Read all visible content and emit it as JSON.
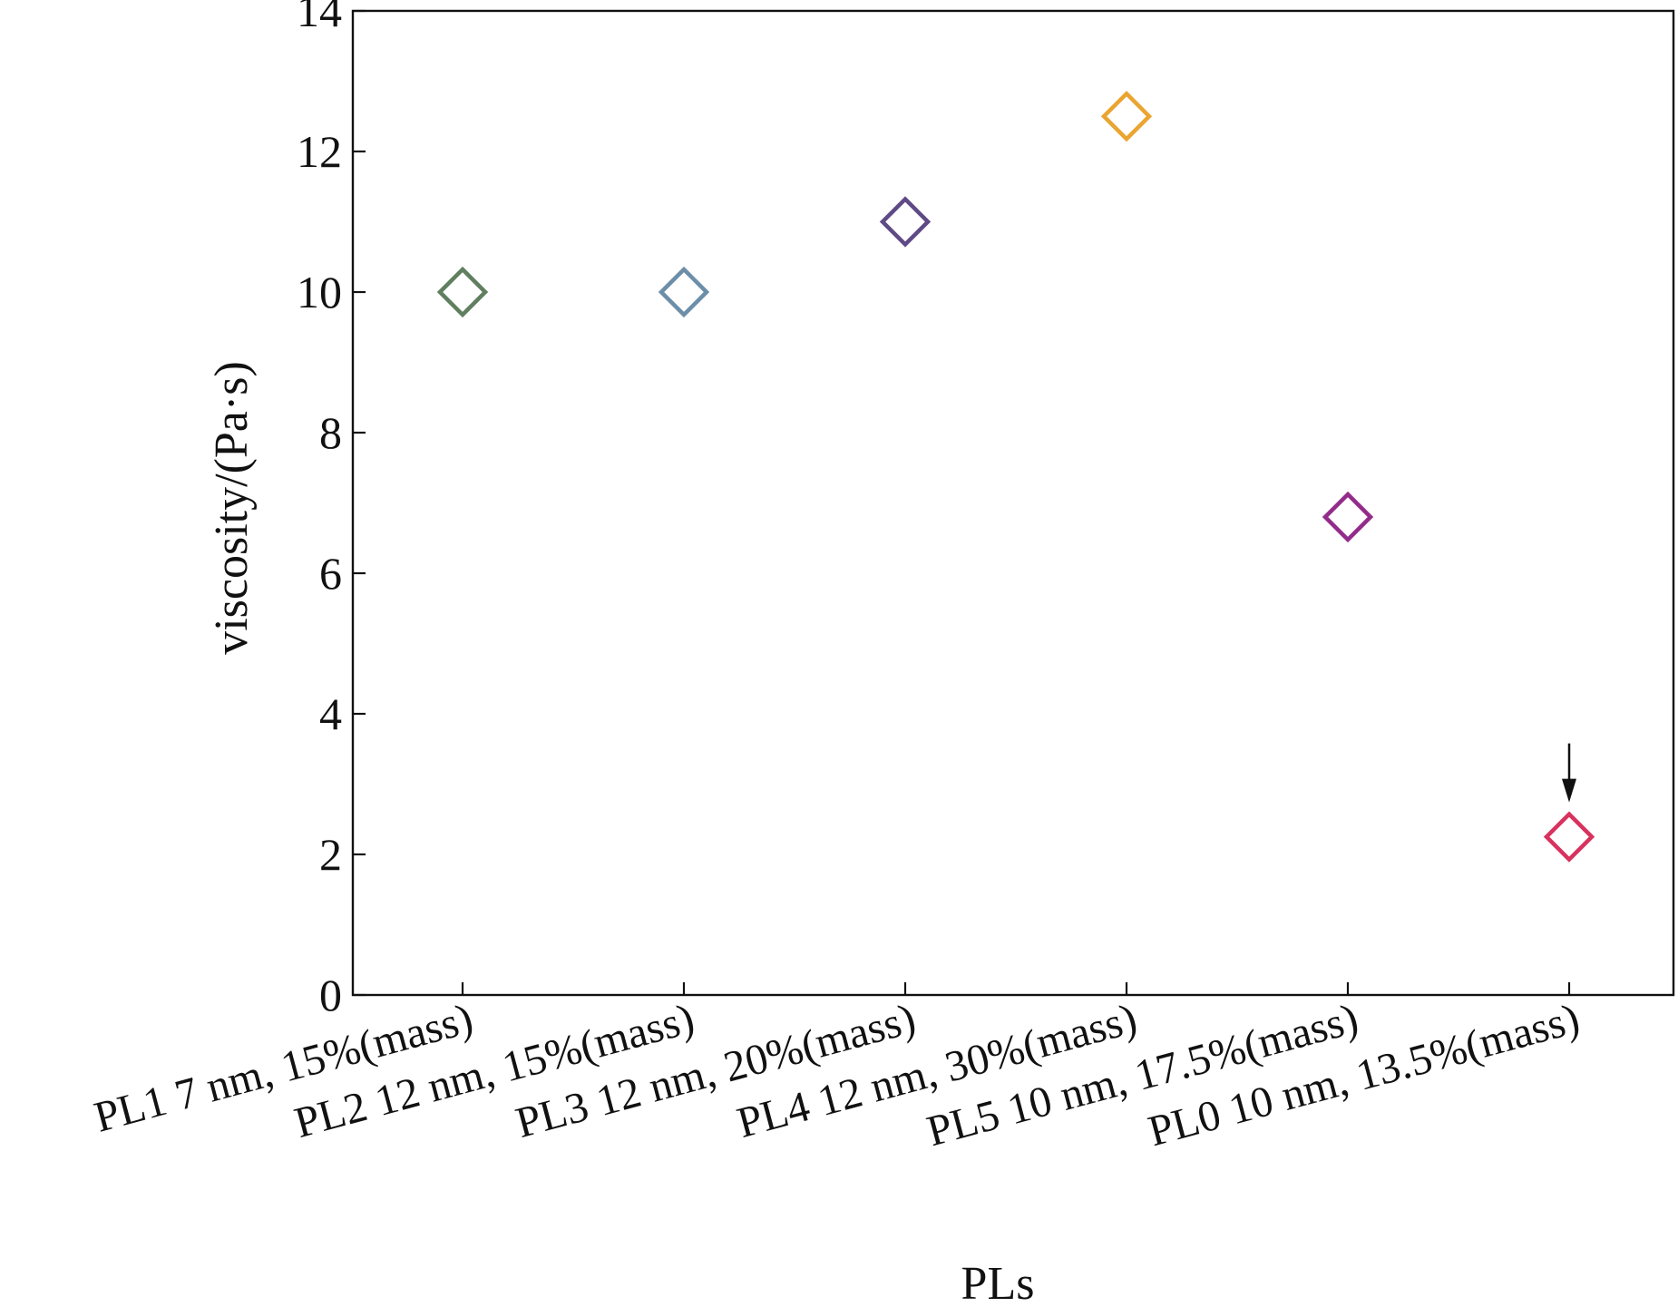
{
  "chart_data": {
    "type": "scatter",
    "xlabel": "PLs",
    "ylabel": "viscosity/(Pa·s)",
    "ylim": [
      0,
      14
    ],
    "yticks": [
      0,
      2,
      4,
      6,
      8,
      10,
      12,
      14
    ],
    "grid": false,
    "legend": "none",
    "marker": "open-diamond",
    "categories": [
      "PL1 7 nm, 15%(mass)",
      "PL2 12 nm, 15%(mass)",
      "PL3 12 nm, 20%(mass)",
      "PL4 12 nm, 30%(mass)",
      "PL5 10 nm, 17.5%(mass)",
      "PL0 10 nm, 13.5%(mass)"
    ],
    "values": [
      10.0,
      10.0,
      11.0,
      12.5,
      6.8,
      2.25
    ],
    "colors": [
      "#5f7f5e",
      "#6c8ea8",
      "#5f4a86",
      "#eaa531",
      "#932b8a",
      "#d8325e"
    ],
    "annotations": [
      {
        "type": "arrow",
        "category_index": 5,
        "direction": "down"
      }
    ]
  }
}
